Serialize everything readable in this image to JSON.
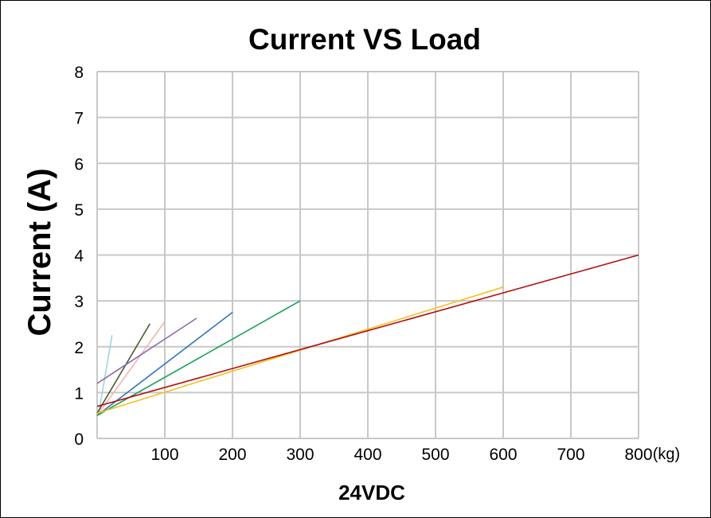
{
  "chart_data": {
    "type": "line",
    "title": "Current VS Load",
    "xlabel": "24VDC",
    "ylabel": "Current (A)",
    "x_unit": "(kg)",
    "xlim": [
      0,
      800
    ],
    "ylim": [
      0,
      8
    ],
    "x_ticks": [
      "100",
      "200",
      "300",
      "400",
      "500",
      "600",
      "700",
      "800"
    ],
    "y_ticks": [
      "0",
      "1",
      "2",
      "3",
      "4",
      "5",
      "6",
      "7",
      "8"
    ],
    "grid": true,
    "legend": "none",
    "series": [
      {
        "name": "series-light-blue",
        "color": "#9fd4e3",
        "x": [
          3,
          22
        ],
        "y": [
          0.6,
          2.25
        ]
      },
      {
        "name": "series-olive",
        "color": "#4a5a2a",
        "x": [
          0,
          78
        ],
        "y": [
          0.55,
          2.5
        ]
      },
      {
        "name": "series-pink",
        "color": "#f0b4b4",
        "x": [
          0,
          100
        ],
        "y": [
          0.5,
          2.55
        ]
      },
      {
        "name": "series-purple",
        "color": "#8b6bb0",
        "x": [
          0,
          147
        ],
        "y": [
          1.2,
          2.62
        ]
      },
      {
        "name": "series-blue",
        "color": "#2e75b6",
        "x": [
          0,
          200
        ],
        "y": [
          0.5,
          2.75
        ]
      },
      {
        "name": "series-green",
        "color": "#1aa05a",
        "x": [
          0,
          300
        ],
        "y": [
          0.5,
          3.0
        ]
      },
      {
        "name": "series-yellow",
        "color": "#f4c020",
        "x": [
          0,
          600
        ],
        "y": [
          0.55,
          3.3
        ]
      },
      {
        "name": "series-dark-red",
        "color": "#b01010",
        "x": [
          0,
          800
        ],
        "y": [
          0.7,
          4.0
        ]
      }
    ]
  }
}
